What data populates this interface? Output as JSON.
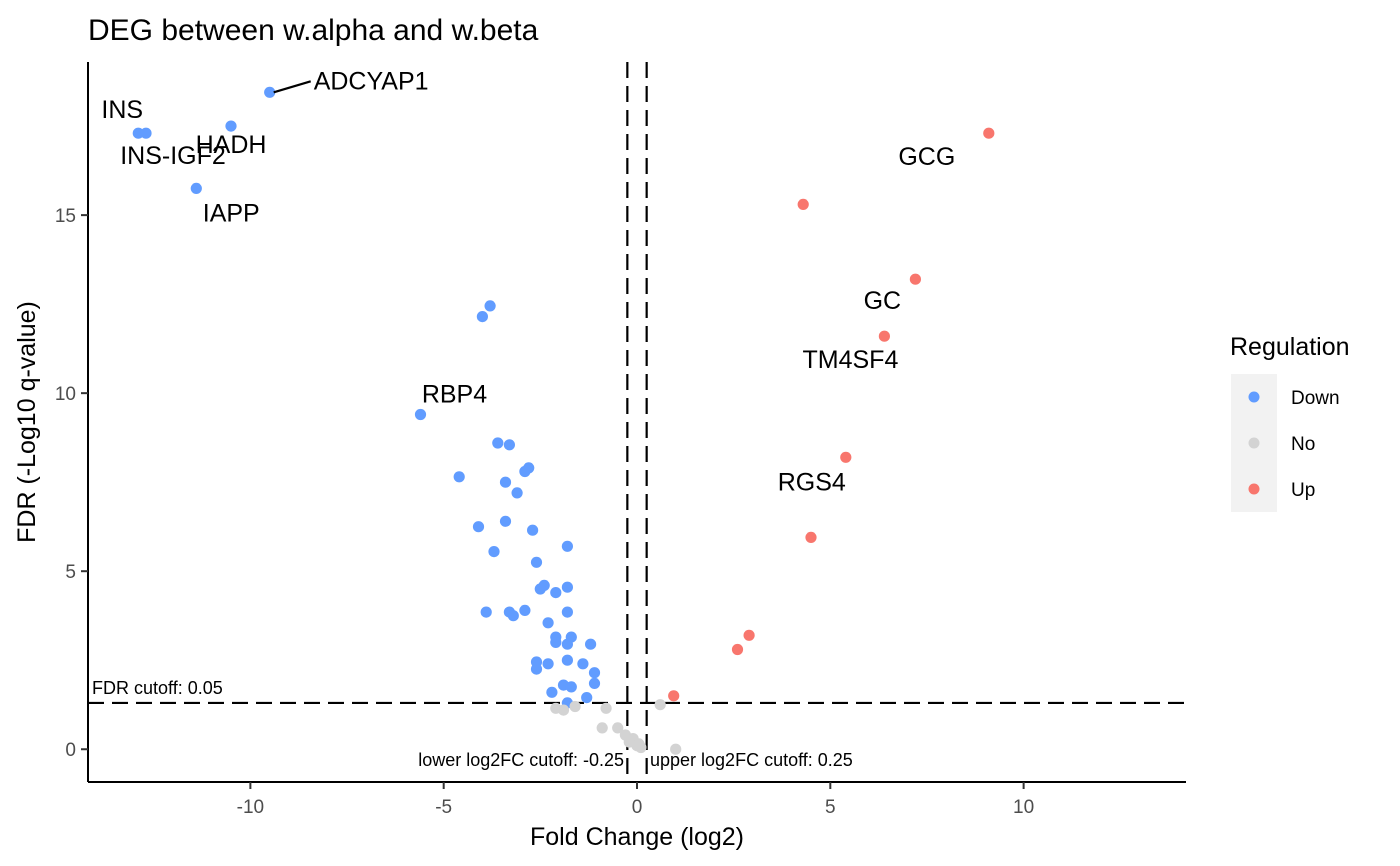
{
  "chart_data": {
    "type": "scatter",
    "title": "DEG between w.alpha and w.beta",
    "xlabel": "Fold Change (log2)",
    "ylabel": "FDR (-Log10 q-value)",
    "xlim": [
      -14.2,
      14.2
    ],
    "ylim": [
      -0.92,
      19.3
    ],
    "x_ticks": [
      -10,
      -5,
      0,
      5,
      10
    ],
    "y_ticks": [
      0,
      5,
      10,
      15
    ],
    "grid": false,
    "legend": {
      "title": "Regulation",
      "position": "right",
      "entries": [
        {
          "label": "Down",
          "color": "#619CFF"
        },
        {
          "label": "No",
          "color": "#D3D3D3"
        },
        {
          "label": "Up",
          "color": "#F8766D"
        }
      ]
    },
    "cutoffs": {
      "fdr": {
        "value": 1.3,
        "label": "FDR cutoff: 0.05"
      },
      "lower_log2fc": {
        "value": -0.25,
        "label": "lower log2FC cutoff: -0.25"
      },
      "upper_log2fc": {
        "value": 0.25,
        "label": "upper log2FC cutoff: 0.25"
      }
    },
    "series": [
      {
        "name": "Down",
        "color": "#619CFF",
        "points": [
          [
            -12.9,
            17.3
          ],
          [
            -12.7,
            17.3
          ],
          [
            -10.5,
            17.5
          ],
          [
            -9.5,
            18.45
          ],
          [
            -11.4,
            15.75
          ],
          [
            -3.8,
            12.45
          ],
          [
            -4.0,
            12.15
          ],
          [
            -5.6,
            9.4
          ],
          [
            -3.6,
            8.6
          ],
          [
            -3.3,
            8.55
          ],
          [
            -2.8,
            7.9
          ],
          [
            -2.9,
            7.8
          ],
          [
            -4.6,
            7.65
          ],
          [
            -3.4,
            7.5
          ],
          [
            -3.1,
            7.2
          ],
          [
            -4.1,
            6.25
          ],
          [
            -3.4,
            6.4
          ],
          [
            -2.7,
            6.15
          ],
          [
            -3.7,
            5.55
          ],
          [
            -1.8,
            5.7
          ],
          [
            -2.6,
            5.25
          ],
          [
            -2.4,
            4.6
          ],
          [
            -2.5,
            4.5
          ],
          [
            -2.1,
            4.4
          ],
          [
            -1.8,
            4.55
          ],
          [
            -3.9,
            3.85
          ],
          [
            -3.3,
            3.85
          ],
          [
            -3.2,
            3.75
          ],
          [
            -2.9,
            3.9
          ],
          [
            -1.8,
            3.85
          ],
          [
            -2.3,
            3.55
          ],
          [
            -2.1,
            3.15
          ],
          [
            -1.7,
            3.15
          ],
          [
            -2.1,
            3.0
          ],
          [
            -1.8,
            2.95
          ],
          [
            -1.2,
            2.95
          ],
          [
            -2.6,
            2.45
          ],
          [
            -2.3,
            2.4
          ],
          [
            -1.8,
            2.5
          ],
          [
            -1.4,
            2.4
          ],
          [
            -2.6,
            2.25
          ],
          [
            -1.1,
            2.15
          ],
          [
            -1.9,
            1.8
          ],
          [
            -1.7,
            1.75
          ],
          [
            -1.1,
            1.85
          ],
          [
            -2.2,
            1.6
          ],
          [
            -1.3,
            1.45
          ],
          [
            -1.8,
            1.3
          ]
        ]
      },
      {
        "name": "No",
        "color": "#D3D3D3",
        "points": [
          [
            -2.1,
            1.15
          ],
          [
            -1.9,
            1.1
          ],
          [
            -1.6,
            1.2
          ],
          [
            -0.8,
            1.15
          ],
          [
            -0.9,
            0.6
          ],
          [
            -0.5,
            0.6
          ],
          [
            -0.3,
            0.4
          ],
          [
            -0.1,
            0.3
          ],
          [
            0.0,
            0.1
          ],
          [
            0.1,
            0.05
          ],
          [
            -0.2,
            0.2
          ],
          [
            0.05,
            0.15
          ],
          [
            0.6,
            1.25
          ],
          [
            1.0,
            0.0
          ]
        ]
      },
      {
        "name": "Up",
        "color": "#F8766D",
        "points": [
          [
            9.1,
            17.3
          ],
          [
            4.3,
            15.3
          ],
          [
            7.2,
            13.2
          ],
          [
            6.4,
            11.6
          ],
          [
            5.4,
            8.2
          ],
          [
            4.5,
            5.95
          ],
          [
            2.9,
            3.2
          ],
          [
            2.6,
            2.8
          ],
          [
            0.95,
            1.5
          ]
        ]
      }
    ],
    "gene_labels": [
      {
        "text": "ADCYAP1",
        "x": -9.5,
        "y": 18.45
      },
      {
        "text": "HADH",
        "x": -10.5,
        "y": 17.5
      },
      {
        "text": "INS",
        "x": -12.9,
        "y": 17.3
      },
      {
        "text": "INS-IGF2",
        "x": -12.7,
        "y": 17.3
      },
      {
        "text": "IAPP",
        "x": -11.4,
        "y": 15.75
      },
      {
        "text": "RBP4",
        "x": -5.6,
        "y": 9.4
      },
      {
        "text": "GCG",
        "x": 9.1,
        "y": 17.3
      },
      {
        "text": "GC",
        "x": 7.2,
        "y": 13.2
      },
      {
        "text": "TM4SF4",
        "x": 6.4,
        "y": 11.6
      },
      {
        "text": "RGS4",
        "x": 5.4,
        "y": 8.2
      }
    ]
  }
}
